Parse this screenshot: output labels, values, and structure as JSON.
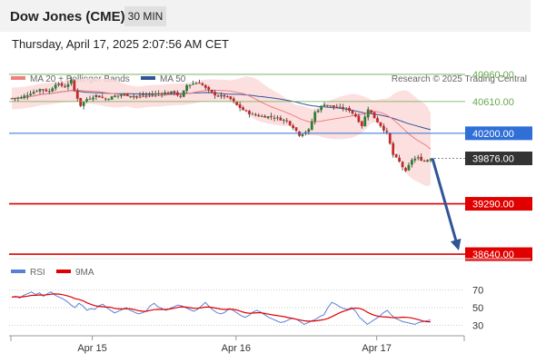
{
  "header": {
    "title": "Dow Jones (CME)",
    "timeframe": "30 MIN"
  },
  "date_line": "Thursday, April 17, 2025 2:07:56 AM CET",
  "colors": {
    "resistance": "#6aa84f",
    "support": "#e00000",
    "pivot": "#2f6fd6",
    "bb_fill": "#fbdada",
    "ma20": "#f08080",
    "ma50": "#2f5597",
    "rsi": "#5b7fd6",
    "rsi_ma": "#e00000",
    "bull": "#2e7d32",
    "bear": "#c62828",
    "arrow": "#2f5597"
  },
  "chart_data": [
    {
      "type": "candlestick",
      "legend": [
        {
          "name": "MA 20 + Bollinger Bands",
          "color": "#f08080"
        },
        {
          "name": "MA 50",
          "color": "#2f5597"
        }
      ],
      "watermark": "Research © 2025 Trading Central",
      "ylim": [
        38500,
        41100
      ],
      "x_ticks": [
        {
          "label": "Apr 15",
          "index": 24
        },
        {
          "label": "Apr 16",
          "index": 70
        },
        {
          "label": "Apr 17",
          "index": 115
        }
      ],
      "levels": [
        {
          "label": "40960.00",
          "value": 40960,
          "role": "resistance"
        },
        {
          "label": "40610.00",
          "value": 40610,
          "role": "resistance"
        },
        {
          "label": "40200.00",
          "value": 40200,
          "role": "pivot"
        },
        {
          "label": "39876.00",
          "value": 39876,
          "role": "last"
        },
        {
          "label": "39290.00",
          "value": 39290,
          "role": "support"
        },
        {
          "label": "38640.00",
          "value": 38640,
          "role": "support"
        }
      ],
      "anchors": [
        [
          0,
          40650
        ],
        [
          3,
          40660
        ],
        [
          6,
          40720
        ],
        [
          9,
          40770
        ],
        [
          12,
          40740
        ],
        [
          14,
          40840
        ],
        [
          17,
          40800
        ],
        [
          19,
          40880
        ],
        [
          20,
          40750
        ],
        [
          22,
          40560
        ],
        [
          24,
          40640
        ],
        [
          27,
          40690
        ],
        [
          30,
          40640
        ],
        [
          33,
          40680
        ],
        [
          36,
          40700
        ],
        [
          40,
          40680
        ],
        [
          44,
          40700
        ],
        [
          48,
          40720
        ],
        [
          52,
          40730
        ],
        [
          54,
          40660
        ],
        [
          56,
          40820
        ],
        [
          58,
          40840
        ],
        [
          60,
          40860
        ],
        [
          62,
          40780
        ],
        [
          64,
          40720
        ],
        [
          66,
          40680
        ],
        [
          68,
          40680
        ],
        [
          70,
          40640
        ],
        [
          72,
          40560
        ],
        [
          74,
          40500
        ],
        [
          77,
          40440
        ],
        [
          80,
          40420
        ],
        [
          84,
          40410
        ],
        [
          86,
          40380
        ],
        [
          88,
          40360
        ],
        [
          90,
          40280
        ],
        [
          92,
          40180
        ],
        [
          95,
          40240
        ],
        [
          97,
          40470
        ],
        [
          100,
          40580
        ],
        [
          103,
          40540
        ],
        [
          106,
          40520
        ],
        [
          108,
          40500
        ],
        [
          110,
          40420
        ],
        [
          112,
          40300
        ],
        [
          114,
          40520
        ],
        [
          116,
          40400
        ],
        [
          118,
          40300
        ],
        [
          120,
          40200
        ],
        [
          122,
          39920
        ],
        [
          124,
          39830
        ],
        [
          126,
          39700
        ],
        [
          128,
          39860
        ],
        [
          130,
          39880
        ],
        [
          132,
          39840
        ],
        [
          134,
          39876
        ]
      ],
      "forecast": {
        "from": 39876,
        "to": 38640
      }
    },
    {
      "type": "line",
      "legend": [
        {
          "name": "RSI",
          "color": "#5b7fd6"
        },
        {
          "name": "9MA",
          "color": "#e00000"
        }
      ],
      "ylim": [
        20,
        78
      ],
      "y_ticks": [
        "70",
        "50",
        "30"
      ],
      "rsi": [
        62,
        63,
        61,
        64,
        66,
        68,
        65,
        67,
        63,
        66,
        68,
        64,
        62,
        60,
        57,
        53,
        50,
        55,
        52,
        47,
        49,
        48,
        52,
        54,
        50,
        47,
        44,
        46,
        48,
        50,
        47,
        45,
        43,
        44,
        46,
        52,
        55,
        51,
        49,
        47,
        49,
        51,
        53,
        52,
        50,
        48,
        46,
        48,
        52,
        56,
        51,
        47,
        44,
        43,
        45,
        49,
        47,
        44,
        41,
        39,
        41,
        45,
        47,
        45,
        42,
        39,
        37,
        35,
        33,
        34,
        36,
        38,
        37,
        34,
        31,
        33,
        35,
        37,
        40,
        42,
        50,
        56,
        54,
        51,
        49,
        48,
        50,
        46,
        39,
        35,
        31,
        34,
        37,
        40,
        44,
        47,
        42,
        38,
        36,
        34,
        33,
        32,
        31,
        33,
        34,
        35,
        36
      ]
    }
  ]
}
